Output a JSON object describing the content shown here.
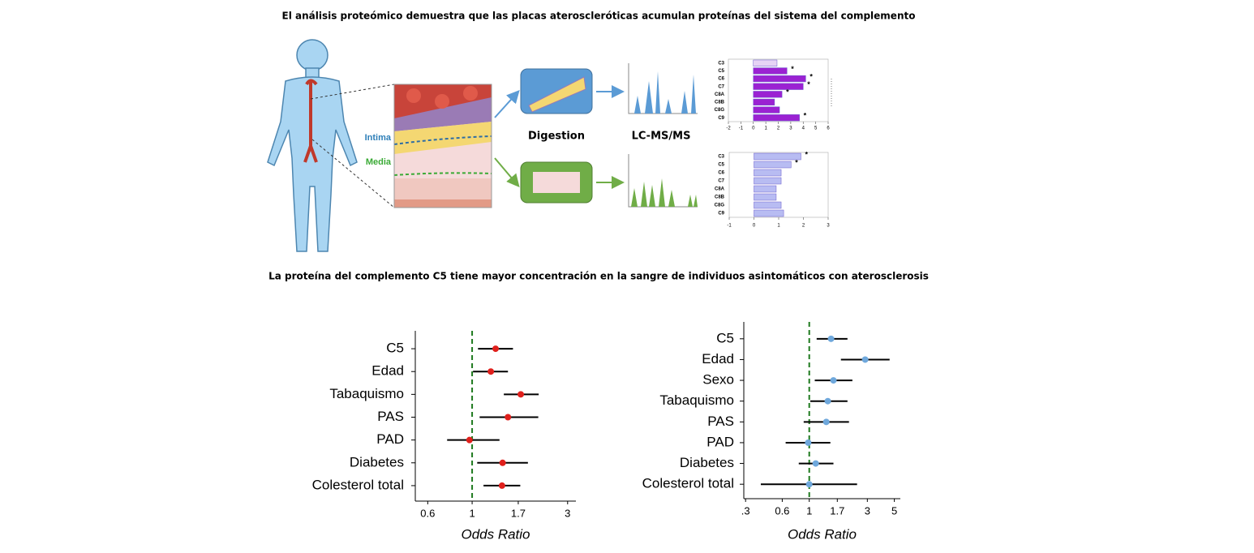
{
  "title": "El análisis proteómico demuestra que las placas ateroscleróticas acumulan proteínas del sistema del complemento",
  "subtitle": "La proteína del complemento C5 tiene mayor concentración en la sangre de individuos asintomáticos con aterosclerosis",
  "diagram": {
    "intima": "Intima",
    "media": "Media",
    "digestion": "Digestion",
    "lcms": "LC-MS/MS"
  },
  "chart_data": [
    {
      "type": "bar",
      "categories": [
        "C3",
        "C5",
        "C6",
        "C7",
        "C8A",
        "C8B",
        "C8G",
        "C9"
      ],
      "values": [
        1.9,
        2.7,
        4.2,
        4.0,
        2.3,
        1.7,
        2.1,
        3.7
      ],
      "colors": [
        "#e6d3f5",
        "#9b22d2",
        "#9b22d2",
        "#9b22d2",
        "#9b22d2",
        "#9b22d2",
        "#9b22d2",
        "#9b22d2"
      ],
      "markers": [
        null,
        "*",
        "*",
        "*",
        "*",
        null,
        null,
        "*"
      ],
      "xlim": [
        -2,
        6
      ],
      "xticks": [
        -2,
        -1,
        0,
        1,
        2,
        3,
        4,
        5,
        6
      ]
    },
    {
      "type": "bar",
      "categories": [
        "C3",
        "C5",
        "C6",
        "C7",
        "C8A",
        "C8B",
        "C8G",
        "C9"
      ],
      "values": [
        1.9,
        1.5,
        1.1,
        1.1,
        0.9,
        0.9,
        1.1,
        1.2
      ],
      "colors": [
        "#b8bcf2",
        "#b8bcf2",
        "#b8bcf2",
        "#b8bcf2",
        "#b8bcf2",
        "#b8bcf2",
        "#b8bcf2",
        "#b8bcf2"
      ],
      "markers": [
        "*",
        "*",
        null,
        null,
        null,
        null,
        null,
        null
      ],
      "xlim": [
        -1,
        3
      ],
      "xticks": [
        -1,
        0,
        1,
        2,
        3
      ]
    },
    {
      "type": "forest",
      "categories": [
        "C5",
        "Edad",
        "Tabaquismo",
        "PAS",
        "PAD",
        "Diabetes",
        "Colesterol total"
      ],
      "values": [
        1.31,
        1.24,
        1.75,
        1.51,
        0.97,
        1.42,
        1.41
      ],
      "lower": [
        1.07,
        1.01,
        1.44,
        1.09,
        0.75,
        1.06,
        1.14
      ],
      "upper": [
        1.6,
        1.51,
        2.15,
        2.14,
        1.37,
        1.9,
        1.74
      ],
      "color": "#e0201c",
      "reference": 1,
      "log_x": true,
      "xlim": [
        0.52,
        3.3
      ],
      "xticks": [
        0.6,
        1,
        1.7,
        3
      ],
      "xlabel": "Odds Ratio"
    },
    {
      "type": "forest",
      "categories": [
        "C5",
        "Edad",
        "Sexo",
        "Tabaquismo",
        "PAS",
        "PAD",
        "Diabetes",
        "Colesterol total"
      ],
      "values": [
        1.51,
        2.88,
        1.58,
        1.42,
        1.38,
        0.98,
        1.13,
        1.0
      ],
      "lower": [
        1.15,
        1.82,
        1.11,
        1.02,
        0.9,
        0.64,
        0.82,
        0.4
      ],
      "upper": [
        2.06,
        4.57,
        2.26,
        2.06,
        2.12,
        1.49,
        1.58,
        2.47
      ],
      "color": "#6fa8dc",
      "reference": 1,
      "log_x": true,
      "xlim": [
        0.29,
        5.6
      ],
      "xticks": [
        {
          "value": 0.3,
          "label": ".3"
        },
        0.6,
        1,
        1.7,
        3,
        5
      ],
      "xlabel": "Odds Ratio"
    }
  ]
}
